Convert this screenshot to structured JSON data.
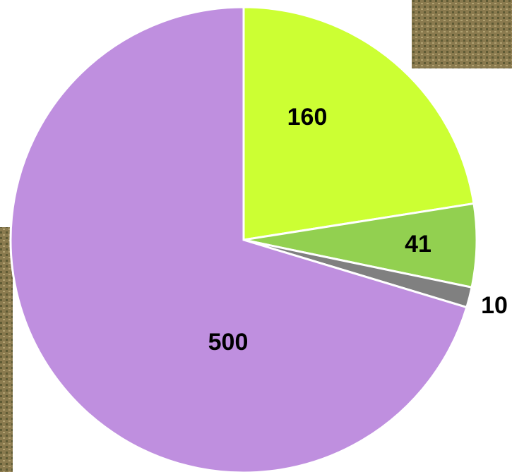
{
  "chart_data": {
    "type": "pie",
    "categories": [
      null,
      null,
      null,
      null
    ],
    "values": [
      160,
      41,
      10,
      500
    ],
    "colors": [
      "#ccff33",
      "#92d050",
      "#808080",
      "#bf8fdf"
    ]
  }
}
